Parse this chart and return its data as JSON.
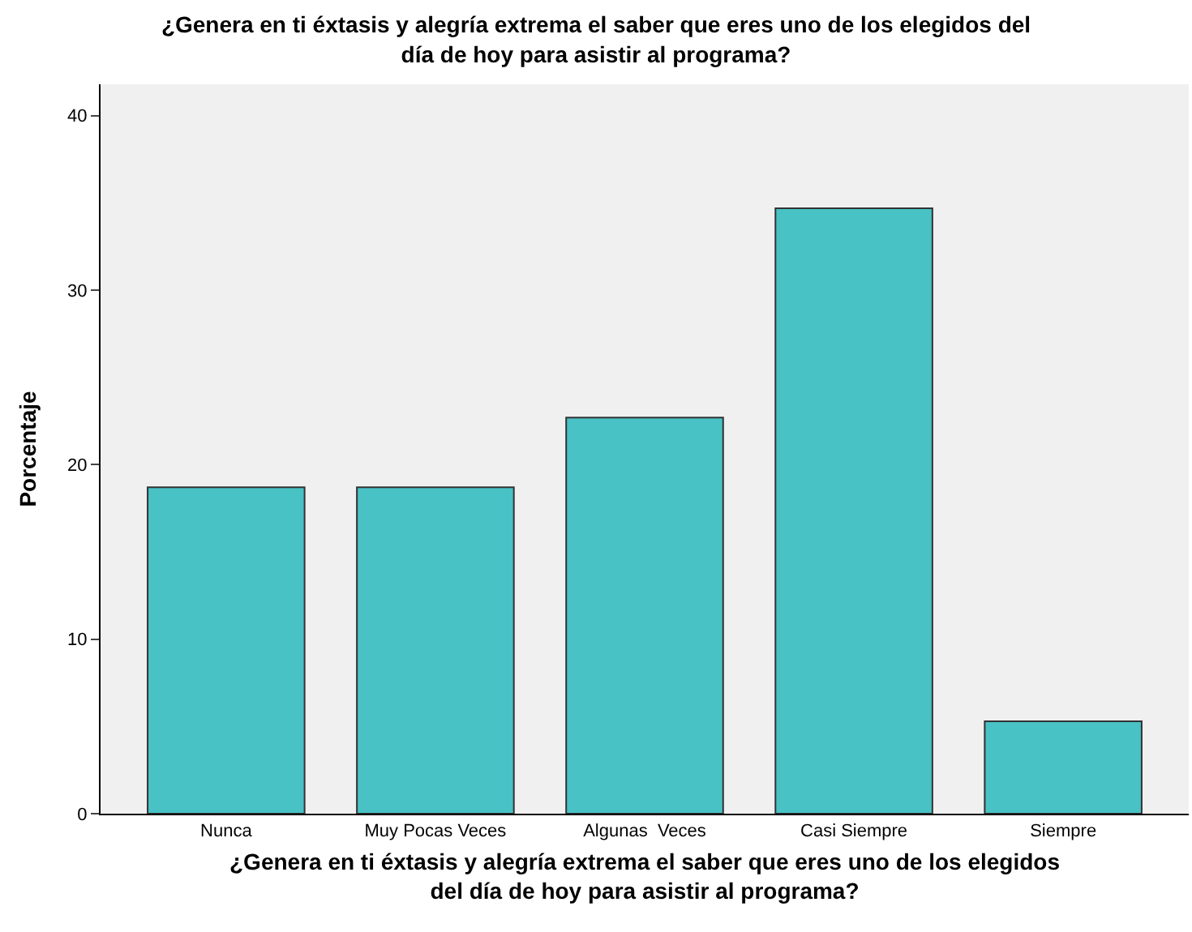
{
  "chart_data": {
    "type": "bar",
    "title": "¿Genera en ti éxtasis y alegría extrema el saber que eres uno de los elegidos del\ndía de hoy para asistir al programa?",
    "xlabel": "¿Genera en ti éxtasis y alegría extrema el saber que eres uno de los elegidos\ndel día de hoy para asistir al programa?",
    "ylabel": "Porcentaje",
    "categories": [
      "Nunca",
      "Muy Pocas Veces",
      "Algunas  Veces",
      "Casi Siempre",
      "Siempre"
    ],
    "values": [
      18.7,
      18.7,
      22.7,
      34.7,
      5.3
    ],
    "color": "#48c2c5",
    "ylim": [
      0,
      41.8
    ],
    "yticks": [
      0,
      10,
      20,
      30,
      40
    ],
    "grid": false
  }
}
